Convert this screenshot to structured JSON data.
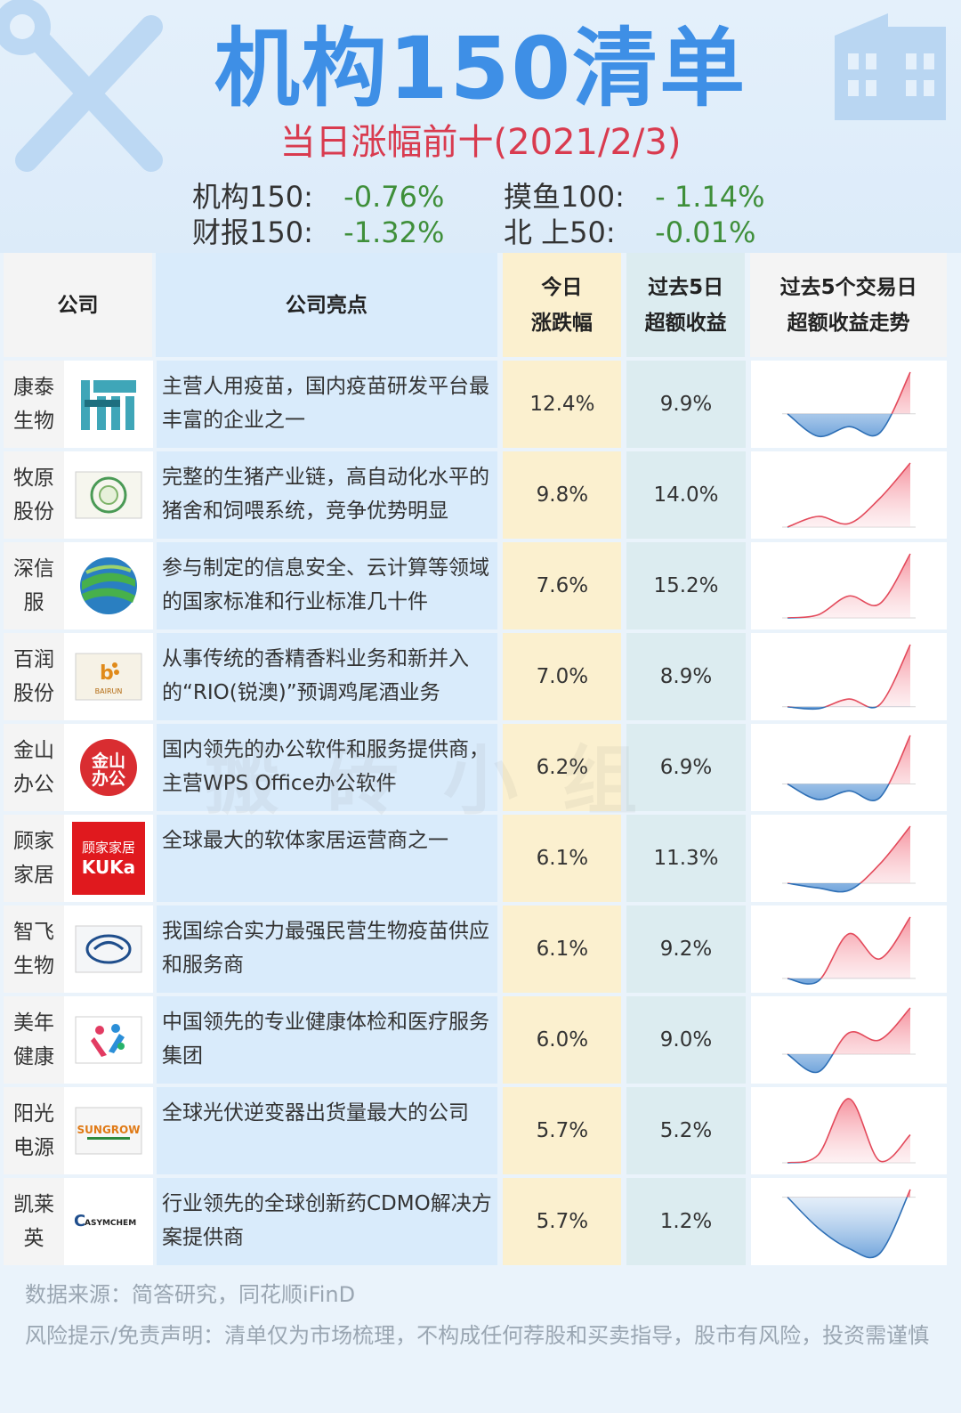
{
  "header": {
    "title": "机构150清单",
    "subtitle": "当日涨幅前十(2021/2/3)",
    "indices": [
      {
        "label": "机构150:",
        "value": "-0.76%"
      },
      {
        "label": "摸鱼100:",
        "value": "- 1.14%"
      },
      {
        "label": "财报150:",
        "value": "-1.32%"
      },
      {
        "label": "北 上50:",
        "value": "-0.01%"
      }
    ]
  },
  "colors": {
    "title": "#3e8fe6",
    "subtitle": "#d93b4f",
    "index_value": "#3f8f3a",
    "trend_up": "#e34a5b",
    "trend_down": "#2e6fb5"
  },
  "table": {
    "headers": {
      "company": "公司",
      "highlight": "公司亮点",
      "today_line1": "今日",
      "today_line2": "涨跌幅",
      "excess_line1": "过去5日",
      "excess_line2": "超额收益",
      "trend_line1": "过去5个交易日",
      "trend_line2": "超额收益走势"
    },
    "rows": [
      {
        "name": "康泰生物",
        "logo_icon": "kangtai-logo-icon",
        "highlight": "主营人用疫苗，国内疫苗研发平台最丰富的企业之一",
        "today": "12.4%",
        "excess5d": "9.9%",
        "trend": [
          0,
          -1.4,
          -0.8,
          -1.2,
          2.6
        ]
      },
      {
        "name": "牧原股份",
        "logo_icon": "muyuan-logo-icon",
        "highlight": "完整的生猪产业链，高自动化水平的猪舍和饲喂系统，竞争优势明显",
        "today": "9.8%",
        "excess5d": "14.0%",
        "trend": [
          0,
          0.6,
          0.2,
          1.6,
          3.6
        ]
      },
      {
        "name": "深信服",
        "logo_icon": "sangfor-logo-icon",
        "highlight": "参与制定的信息安全、云计算等领域的国家标准和行业标准几十件",
        "today": "7.6%",
        "excess5d": "15.2%",
        "trend": [
          0,
          0.2,
          1.4,
          0.9,
          4.1
        ]
      },
      {
        "name": "百润股份",
        "logo_icon": "bairun-logo-icon",
        "highlight": "从事传统的香精香料业务和新并入的“RIO(锐澳)”预调鸡尾酒业务",
        "today": "7.0%",
        "excess5d": "8.9%",
        "trend": [
          0,
          -0.1,
          0.4,
          0.1,
          3.2
        ]
      },
      {
        "name": "金山办公",
        "logo_icon": "kingsoft-office-logo-icon",
        "highlight": "国内领先的办公软件和服务提供商，主营WPS Office办公软件",
        "today": "6.2%",
        "excess5d": "6.9%",
        "trend": [
          0,
          -0.9,
          -0.4,
          -0.8,
          2.8
        ]
      },
      {
        "name": "顾家家居",
        "logo_icon": "kuka-logo-icon",
        "highlight": "全球最大的软体家居运营商之一",
        "today": "6.1%",
        "excess5d": "11.3%",
        "trend": [
          0,
          -0.2,
          -0.3,
          0.8,
          2.4
        ]
      },
      {
        "name": "智飞生物",
        "logo_icon": "zhifei-logo-icon",
        "highlight": "我国综合实力最强民营生物疫苗供应和服务商",
        "today": "6.1%",
        "excess5d": "9.2%",
        "trend": [
          0,
          -0.1,
          1.6,
          0.7,
          2.2
        ]
      },
      {
        "name": "美年健康",
        "logo_icon": "meinian-logo-icon",
        "highlight": "中国领先的专业健康体检和医疗服务集团",
        "today": "6.0%",
        "excess5d": "9.0%",
        "trend": [
          0,
          -1.0,
          1.2,
          0.8,
          2.6
        ]
      },
      {
        "name": "阳光电源",
        "logo_icon": "sungrow-logo-icon",
        "highlight": "全球光伏逆变器出货量最大的公司",
        "today": "5.7%",
        "excess5d": "5.2%",
        "trend": [
          0,
          0.4,
          3.2,
          0.1,
          1.4
        ]
      },
      {
        "name": "凯莱英",
        "logo_icon": "asymchem-logo-icon",
        "highlight": "行业领先的全球创新药CDMO解决方案提供商",
        "today": "5.7%",
        "excess5d": "1.2%",
        "trend": [
          0,
          -1.2,
          -2.0,
          -2.2,
          0.3
        ]
      }
    ]
  },
  "logos": {
    "jinshan_text_1": "金山",
    "jinshan_text_2": "办公",
    "kuka_text_1": "顾家家居",
    "kuka_text_2": "KUKa",
    "sungrow_text": "SUNGROW",
    "asymchem_text": "ASYMCHEM",
    "bairun_text": "BAIRUN"
  },
  "watermark": "搬砖小组",
  "footer": {
    "source": "数据来源：简答研究，同花顺iFinD",
    "disclaimer": "风险提示/免责声明：清单仅为市场梳理，不构成任何荐股和买卖指导，股市有风险，投资需谨慎"
  }
}
